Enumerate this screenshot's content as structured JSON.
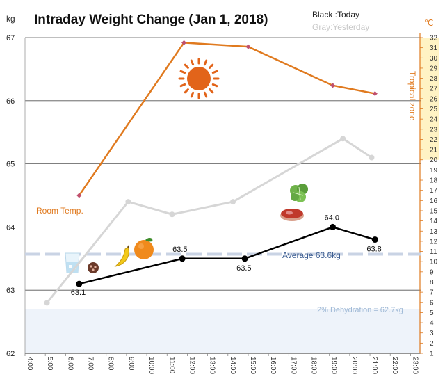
{
  "title": "Intraday Weight Change (Jan 1, 2018)",
  "legend": {
    "today": "Black :Today",
    "yesterday": "Gray:Yesterday"
  },
  "colors": {
    "today": "#000000",
    "yesterday": "#d6d6d6",
    "temperature": "#e07a1f",
    "temperature_marker": "#c0506e",
    "average_line": "#c9d3e4",
    "dehydration_band": "#eef3fa",
    "tropical_band": "#fff3c4",
    "grid": "#555555"
  },
  "icons": [
    "sun-icon",
    "water-glass-icon",
    "chocolate-icon",
    "banana-icon",
    "orange-icon",
    "meat-icon",
    "lettuce-icon"
  ],
  "chart_data": {
    "type": "line",
    "title": "Intraday Weight Change (Jan 1, 2018)",
    "x_ticks": [
      "4:00",
      "5:00",
      "6:00",
      "7:00",
      "8:00",
      "9:00",
      "10:00",
      "11:00",
      "12:00",
      "13:00",
      "14:00",
      "15:00",
      "16:00",
      "17:00",
      "18:00",
      "19:00",
      "20:00",
      "21:00",
      "22:00",
      "23:00"
    ],
    "xlim": [
      "4:00",
      "23:30"
    ],
    "y_left": {
      "unit": "kg",
      "ylim": [
        62,
        67
      ],
      "ticks": [
        62,
        63,
        64,
        65,
        66,
        67
      ]
    },
    "y_right": {
      "unit": "℃",
      "ylim": [
        1,
        32
      ],
      "ticks": [
        1,
        2,
        3,
        4,
        5,
        6,
        7,
        8,
        9,
        10,
        11,
        12,
        13,
        14,
        15,
        16,
        17,
        18,
        19,
        20,
        21,
        22,
        23,
        24,
        25,
        26,
        27,
        28,
        29,
        30,
        31,
        32
      ]
    },
    "series": [
      {
        "name": "Today",
        "axis": "left",
        "x": [
          "6:40",
          "11:45",
          "14:50",
          "19:10",
          "21:15"
        ],
        "y": [
          63.1,
          63.5,
          63.5,
          64.0,
          63.8
        ],
        "labels": [
          "63.1",
          "63.5",
          "63.5",
          "64.0",
          "63.8"
        ]
      },
      {
        "name": "Yesterday",
        "axis": "left",
        "x": [
          "5:05",
          "9:05",
          "11:15",
          "14:15",
          "19:40",
          "21:05"
        ],
        "y": [
          62.8,
          64.4,
          64.2,
          64.4,
          65.4,
          65.1
        ]
      },
      {
        "name": "Temperature",
        "axis": "right",
        "x": [
          "6:40",
          "11:50",
          "15:00",
          "19:10",
          "21:15"
        ],
        "y": [
          16.5,
          31.5,
          31.1,
          27.3,
          26.5
        ]
      }
    ],
    "reference_lines": [
      {
        "axis": "left",
        "y": 63.57,
        "label": "Average 63.6kg"
      }
    ],
    "bands": [
      {
        "axis": "left",
        "from": 62,
        "to": 62.7,
        "label": "2% Dehydration  = 62.7kg"
      },
      {
        "axis": "right",
        "from": 20,
        "to": 32,
        "label": "Tropical zone"
      }
    ],
    "annotations": [
      "Room Temp.",
      "Tropical zone"
    ],
    "grid": true
  }
}
